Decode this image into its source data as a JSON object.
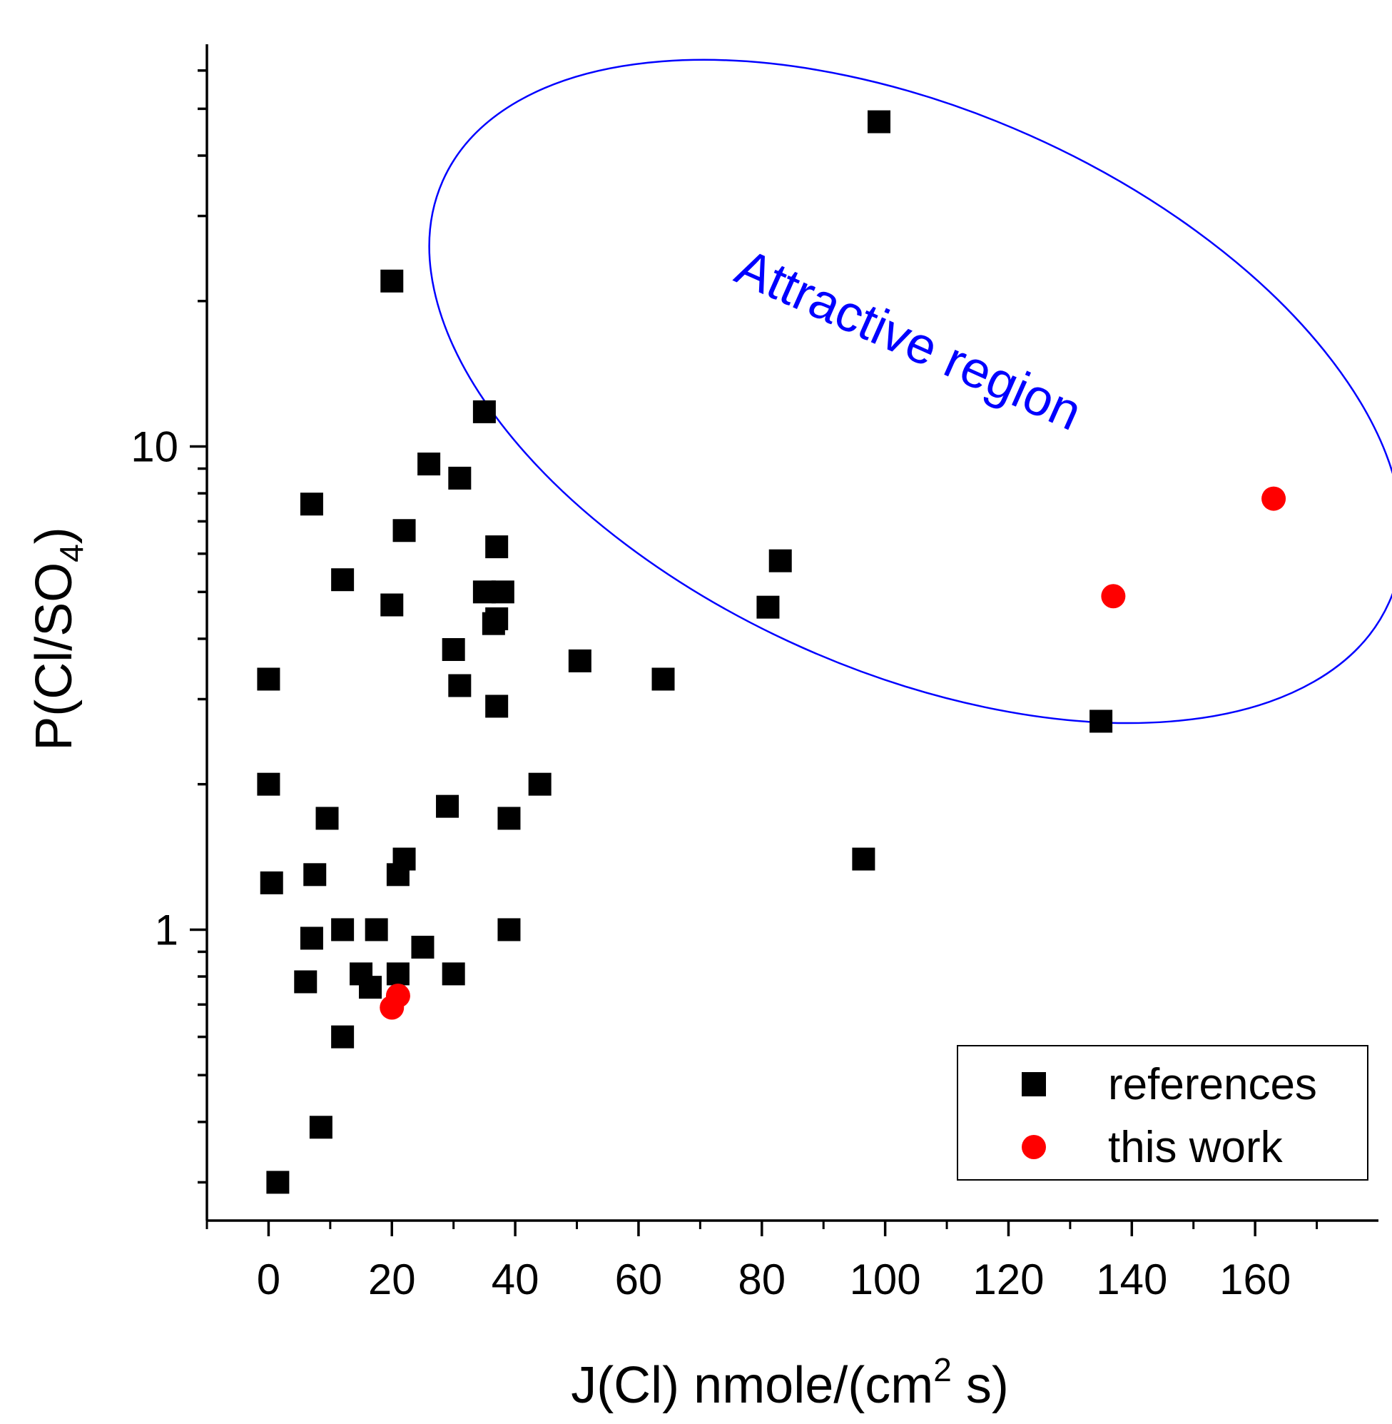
{
  "chart_data": {
    "type": "scatter",
    "xlabel_main": "J(Cl) nmole/(cm",
    "xlabel_sup": "2",
    "xlabel_end": " s)",
    "ylabel_main": "P(Cl/SO",
    "ylabel_sub": "4",
    "ylabel_end": ")",
    "xlim": [
      -10,
      180
    ],
    "ylim": [
      0.25,
      68
    ],
    "y_scale": "log",
    "x_ticks": [
      0,
      20,
      40,
      60,
      80,
      100,
      120,
      140,
      160
    ],
    "x_tick_labels": [
      "0",
      "20",
      "40",
      "60",
      "80",
      "100",
      "120",
      "140",
      "160"
    ],
    "y_tick_labels": [
      {
        "value": 1,
        "label": "1"
      },
      {
        "value": 10,
        "label": "10"
      }
    ],
    "grid": false,
    "legend_position": "bottom-right",
    "annotation": {
      "text": "Attractive region",
      "color": "#0000ff",
      "center": [
        105,
        13
      ],
      "x_radius": 84,
      "y_span_log10": 0.58,
      "angle_deg": 24
    },
    "series": [
      {
        "name": "references",
        "marker": "square",
        "color": "#000000",
        "points": [
          [
            99,
            47
          ],
          [
            20,
            22
          ],
          [
            35,
            11.8
          ],
          [
            26,
            9.2
          ],
          [
            31,
            8.6
          ],
          [
            7,
            7.6
          ],
          [
            22,
            6.7
          ],
          [
            37,
            6.2
          ],
          [
            83,
            5.8
          ],
          [
            12,
            5.3
          ],
          [
            35,
            5.0
          ],
          [
            38,
            5.0
          ],
          [
            20,
            4.7
          ],
          [
            81,
            4.65
          ],
          [
            37,
            4.4
          ],
          [
            36.5,
            4.3
          ],
          [
            30,
            3.8
          ],
          [
            50.5,
            3.6
          ],
          [
            0,
            3.3
          ],
          [
            64,
            3.3
          ],
          [
            31,
            3.2
          ],
          [
            37,
            2.9
          ],
          [
            135,
            2.7
          ],
          [
            0,
            2.0
          ],
          [
            44,
            2.0
          ],
          [
            29,
            1.8
          ],
          [
            9.5,
            1.7
          ],
          [
            39,
            1.7
          ],
          [
            22,
            1.4
          ],
          [
            96.5,
            1.4
          ],
          [
            7.5,
            1.3
          ],
          [
            21,
            1.3
          ],
          [
            0.5,
            1.25
          ],
          [
            12,
            1.0
          ],
          [
            17.5,
            1.0
          ],
          [
            39,
            1.0
          ],
          [
            7,
            0.96
          ],
          [
            25,
            0.92
          ],
          [
            15,
            0.81
          ],
          [
            21,
            0.81
          ],
          [
            30,
            0.81
          ],
          [
            6,
            0.78
          ],
          [
            16.5,
            0.76
          ],
          [
            12,
            0.6
          ],
          [
            8.5,
            0.39
          ],
          [
            1.5,
            0.3
          ]
        ]
      },
      {
        "name": "this work",
        "marker": "circle",
        "color": "#ff0000",
        "points": [
          [
            163,
            7.8
          ],
          [
            137,
            4.9
          ],
          [
            21,
            0.73
          ],
          [
            20,
            0.69
          ]
        ]
      }
    ]
  }
}
